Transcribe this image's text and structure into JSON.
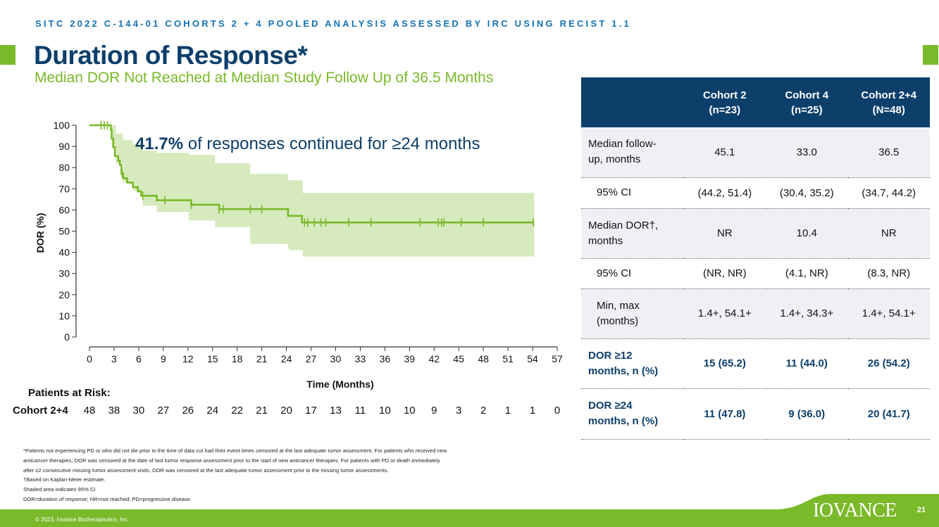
{
  "header": {
    "study_line": "SITC 2022 C-144-01 COHORTS 2 + 4 POOLED ANALYSIS ASSESSED BY IRC USING RECIST 1.1",
    "title": "Duration of Response*",
    "subtitle": "Median DOR Not Reached at Median Study Follow Up of 36.5 Months"
  },
  "chart_data": {
    "type": "line",
    "title": "",
    "xlabel": "Time (Months)",
    "ylabel": "DOR (%)",
    "xlim": [
      0,
      57
    ],
    "ylim": [
      0,
      100
    ],
    "x_ticks": [
      0,
      3,
      6,
      9,
      12,
      15,
      18,
      21,
      24,
      27,
      30,
      33,
      36,
      39,
      42,
      45,
      48,
      51,
      54,
      57
    ],
    "y_ticks": [
      0,
      10,
      20,
      30,
      40,
      50,
      60,
      70,
      80,
      90,
      100
    ],
    "annotation": {
      "bold": "41.7%",
      "text": " of responses continued for ≥24 months"
    },
    "series": [
      {
        "name": "Cohort 2+4",
        "kind": "step",
        "points": [
          [
            0,
            100
          ],
          [
            2.5,
            100
          ],
          [
            2.6,
            97.9
          ],
          [
            2.7,
            93.7
          ],
          [
            2.9,
            89.6
          ],
          [
            3.1,
            85.4
          ],
          [
            3.5,
            83.3
          ],
          [
            3.7,
            81.3
          ],
          [
            3.9,
            77.1
          ],
          [
            4.1,
            75.0
          ],
          [
            4.6,
            72.9
          ],
          [
            5.3,
            70.8
          ],
          [
            5.9,
            68.8
          ],
          [
            6.3,
            66.7
          ],
          [
            8.2,
            64.6
          ],
          [
            12.4,
            62.5
          ],
          [
            15.8,
            60.4
          ],
          [
            24.2,
            57.2
          ],
          [
            25.9,
            54.1
          ],
          [
            54.2,
            54.1
          ]
        ],
        "censor_x": [
          1.4,
          1.8,
          2.2,
          4.0,
          6.5,
          9.2,
          12.4,
          15.8,
          16.3,
          19.6,
          21.0,
          26.2,
          26.6,
          27.4,
          28.2,
          28.8,
          31.6,
          34.3,
          40.3,
          42.5,
          42.9,
          43.2,
          45.3,
          48.0,
          54.1
        ]
      }
    ],
    "confidence_band": {
      "name": "95% CI",
      "points": [
        [
          0,
          100,
          100
        ],
        [
          2.7,
          100,
          90
        ],
        [
          3.2,
          96,
          82
        ],
        [
          4.1,
          93,
          73
        ],
        [
          5.3,
          91,
          69
        ],
        [
          6.5,
          88,
          62
        ],
        [
          8.2,
          87,
          59
        ],
        [
          12.1,
          86,
          55
        ],
        [
          15.1,
          86,
          55
        ],
        [
          15.3,
          82,
          52
        ],
        [
          19.6,
          77,
          44
        ],
        [
          24.2,
          74,
          42
        ],
        [
          24.3,
          74,
          41
        ],
        [
          25.9,
          74,
          41
        ],
        [
          26.0,
          68,
          38
        ],
        [
          54.2,
          68,
          38
        ]
      ]
    },
    "at_risk": {
      "title": "Patients at Risk:",
      "label": "Cohort 2+4",
      "times": [
        0,
        3,
        6,
        9,
        12,
        15,
        18,
        21,
        24,
        27,
        30,
        33,
        36,
        39,
        42,
        45,
        48,
        51,
        54,
        57
      ],
      "values": [
        "48",
        "38",
        "30",
        "27",
        "26",
        "24",
        "22",
        "21",
        "20",
        "17",
        "13",
        "11",
        "10",
        "10",
        "9",
        "3",
        "2",
        "1",
        "1",
        "0"
      ]
    },
    "colors": {
      "line": "#7ab929",
      "band": "#d6eabd",
      "axis": "#333333"
    }
  },
  "table": {
    "headers": [
      {
        "line1": "",
        "line2": ""
      },
      {
        "line1": "Cohort 2",
        "line2": "(n=23)"
      },
      {
        "line1": "Cohort 4",
        "line2": "(n=25)"
      },
      {
        "line1": "Cohort 2+4",
        "line2": "(N=48)"
      }
    ],
    "rows": [
      {
        "line1": "Median follow-",
        "line2": "up, months",
        "values": [
          "45.1",
          "33.0",
          "36.5"
        ]
      },
      {
        "line1": "95% CI",
        "line2": "",
        "values": [
          "(44.2, 51.4)",
          "(30.4, 35.2)",
          "(34.7, 44.2)"
        ]
      },
      {
        "line1": "Median DOR†,",
        "line2": "months",
        "values": [
          "NR",
          "10.4",
          "NR"
        ]
      },
      {
        "line1": "95% CI",
        "line2": "",
        "values": [
          "(NR, NR)",
          "(4.1, NR)",
          "(8.3, NR)"
        ]
      },
      {
        "line1": "Min, max",
        "line2": "(months)",
        "values": [
          "1.4+, 54.1+",
          "1.4+, 34.3+",
          "1.4+, 54.1+"
        ]
      },
      {
        "line1": "DOR ≥12",
        "line2": "months, n (%)",
        "values": [
          "15 (65.2)",
          "11 (44.0)",
          "26 (54.2)"
        ]
      },
      {
        "line1": "DOR ≥24",
        "line2": "months, n (%)",
        "values": [
          "11 (47.8)",
          "9 (36.0)",
          "20 (41.7)"
        ]
      }
    ]
  },
  "footnotes": [
    "*Patients not experiencing PD or who did not die prior to the time of data cut had their event times censored at the last adequate tumor assessment. For patients who received new",
    "anticancer therapies, DOR was censored at the date of last tumor response  assessment prior to the start of new anticancer therapies. For patients with PD or death immediately",
    "after ≥2 consecutive missing tumor assessment visits, DOR was censored at the last adequate tumor assessment prior to the missing tumor assessments.",
    "†Based on Kaplan-Meier estimate.",
    "Shaded area indicates 95% CI",
    "DOR=duration of response; NR=not reached; PD=progressive disease"
  ],
  "footer": {
    "copyright": "© 2023, Iovance Biotherapeutics, Inc.",
    "logo": "IOVANCE",
    "page_number": "21"
  }
}
